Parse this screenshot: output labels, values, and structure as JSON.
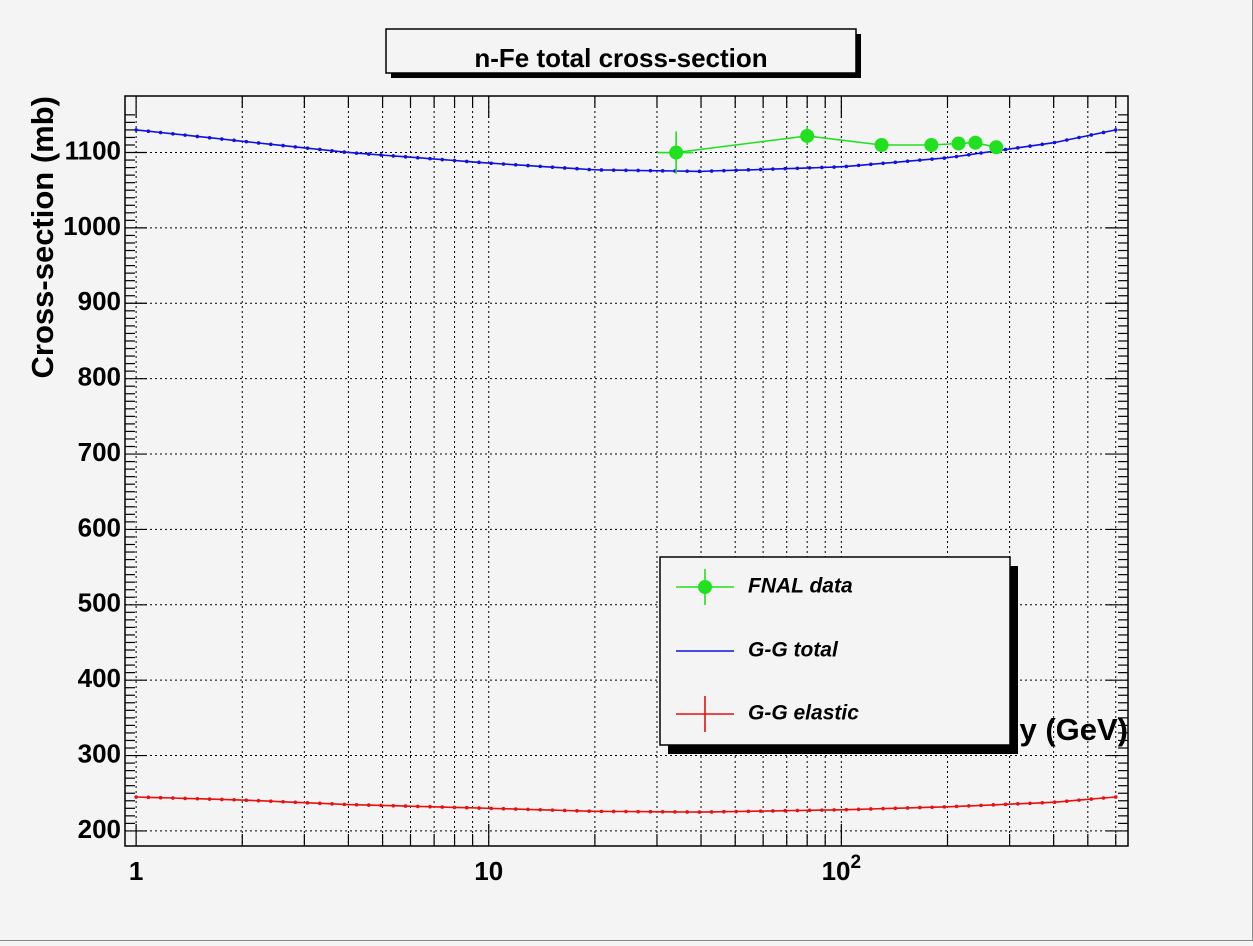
{
  "chart_data": {
    "type": "scatter",
    "title": "n-Fe total cross-section",
    "xlabel": "Neutron energy (GeV)",
    "ylabel": "Cross-section (mb)",
    "x_scale": "log",
    "xlim": [
      0.93,
      650
    ],
    "ylim": [
      180,
      1175
    ],
    "x_tick_labels": [
      {
        "value": 1,
        "label": "1"
      },
      {
        "value": 10,
        "label": "10"
      },
      {
        "value": 100,
        "label": "10",
        "sup": "2"
      }
    ],
    "y_ticks": [
      200,
      300,
      400,
      500,
      600,
      700,
      800,
      900,
      1000,
      1100
    ],
    "grid": true,
    "legend_placement": "lower-right",
    "colors": {
      "fnal": "#20e020",
      "gg_total": "#1010e0",
      "gg_elastic": "#e81010",
      "frame": "#000000"
    },
    "series": [
      {
        "name": "FNAL data",
        "kind": "points_with_errors",
        "points": [
          {
            "x": 34,
            "y": 1100,
            "xerr_lo": 4,
            "xerr_hi": 4,
            "yerr": 28
          },
          {
            "x": 80,
            "y": 1122,
            "xerr_lo": 3,
            "xerr_hi": 3,
            "yerr": 12
          },
          {
            "x": 130,
            "y": 1110,
            "xerr_lo": 5,
            "xerr_hi": 5,
            "yerr": 6
          },
          {
            "x": 180,
            "y": 1110,
            "xerr_lo": 0,
            "xerr_hi": 0,
            "yerr": 5
          },
          {
            "x": 215,
            "y": 1112,
            "xerr_lo": 0,
            "xerr_hi": 0,
            "yerr": 5
          },
          {
            "x": 240,
            "y": 1113,
            "xerr_lo": 0,
            "xerr_hi": 0,
            "yerr": 5
          },
          {
            "x": 275,
            "y": 1107,
            "xerr_lo": 0,
            "xerr_hi": 0,
            "yerr": 5
          }
        ]
      },
      {
        "name": "G-G total",
        "kind": "curve",
        "points": [
          {
            "x": 1,
            "y": 1130
          },
          {
            "x": 2,
            "y": 1115
          },
          {
            "x": 4,
            "y": 1100
          },
          {
            "x": 10,
            "y": 1086
          },
          {
            "x": 20,
            "y": 1077
          },
          {
            "x": 40,
            "y": 1075
          },
          {
            "x": 100,
            "y": 1081
          },
          {
            "x": 200,
            "y": 1093
          },
          {
            "x": 400,
            "y": 1113
          },
          {
            "x": 600,
            "y": 1130
          }
        ]
      },
      {
        "name": "G-G elastic",
        "kind": "curve",
        "points": [
          {
            "x": 1,
            "y": 245
          },
          {
            "x": 2,
            "y": 241
          },
          {
            "x": 4,
            "y": 235
          },
          {
            "x": 10,
            "y": 230
          },
          {
            "x": 20,
            "y": 226
          },
          {
            "x": 40,
            "y": 225
          },
          {
            "x": 100,
            "y": 228
          },
          {
            "x": 200,
            "y": 232
          },
          {
            "x": 400,
            "y": 238
          },
          {
            "x": 600,
            "y": 245
          }
        ]
      }
    ]
  }
}
